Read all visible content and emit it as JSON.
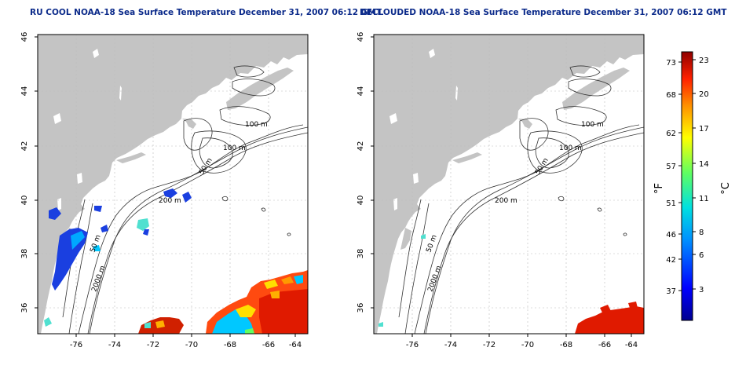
{
  "titles": {
    "left": "RU COOL NOAA-18 Sea Surface Temperature December 31, 2007 06:12 GMT",
    "right": "DECLOUDED NOAA-18 Sea Surface Temperature December 31, 2007 06:12 GMT"
  },
  "axes": {
    "lon_labels": [
      "-76",
      "-74",
      "-72",
      "-70",
      "-68",
      "-66",
      "-64"
    ],
    "lat_labels": [
      "46",
      "44",
      "42",
      "40",
      "38",
      "36"
    ]
  },
  "contours": {
    "c100a": "100 m",
    "c100b": "100 m",
    "c50a": "50 m",
    "c200": "200 m",
    "c50b": "50 m",
    "c2000": "2000 m"
  },
  "colorbar": {
    "unit_f": "°F",
    "unit_c": "°C",
    "f_ticks": [
      "73",
      "68",
      "62",
      "57",
      "51",
      "46",
      "42",
      "37"
    ],
    "c_ticks": [
      "23",
      "20",
      "17",
      "14",
      "11",
      "8",
      "6",
      "3"
    ]
  },
  "colors": {
    "land": "#c4c4c4",
    "sea": "#ffffff",
    "title": "#0b2a8a",
    "grid": "#bbbbbb"
  }
}
